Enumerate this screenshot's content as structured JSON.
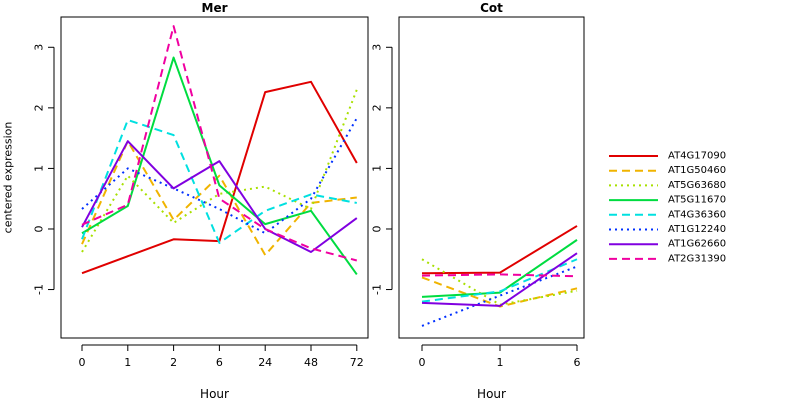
{
  "chart_data": [
    {
      "type": "line",
      "title": "Mer",
      "xlabel": "Hour",
      "ylabel": "centered expression",
      "categories": [
        "0",
        "1",
        "2",
        "6",
        "24",
        "48",
        "72"
      ],
      "ylim": [
        -1.8,
        3.5
      ],
      "yticks": [
        -1,
        0,
        1,
        2,
        3
      ],
      "grid": false,
      "series": [
        {
          "name": "AT4G17090",
          "color": "#e00000",
          "dash": "solid",
          "values": [
            -0.73,
            -0.45,
            -0.17,
            -0.2,
            2.26,
            2.43,
            1.09
          ]
        },
        {
          "name": "AT1G50460",
          "color": "#f0b400",
          "dash": "dashed",
          "values": [
            -0.25,
            1.45,
            0.15,
            0.88,
            -0.43,
            0.43,
            0.52
          ]
        },
        {
          "name": "AT5G63680",
          "color": "#a8e000",
          "dash": "dotted",
          "values": [
            -0.38,
            0.88,
            0.1,
            0.58,
            0.7,
            0.33,
            2.3
          ]
        },
        {
          "name": "AT5G11670",
          "color": "#00dc40",
          "dash": "solid",
          "values": [
            -0.07,
            0.38,
            2.83,
            0.72,
            0.08,
            0.3,
            -0.75
          ]
        },
        {
          "name": "AT4G36360",
          "color": "#00e0e0",
          "dash": "dashed",
          "values": [
            -0.17,
            1.8,
            1.55,
            -0.23,
            0.3,
            0.57,
            0.43
          ]
        },
        {
          "name": "AT1G12240",
          "color": "#0030ff",
          "dash": "dotted",
          "values": [
            0.33,
            1.0,
            0.67,
            0.33,
            -0.07,
            0.5,
            1.83
          ]
        },
        {
          "name": "AT1G62660",
          "color": "#8000e0",
          "dash": "solid",
          "values": [
            0.03,
            1.45,
            0.67,
            1.12,
            0.0,
            -0.38,
            0.18
          ]
        },
        {
          "name": "AT2G31390",
          "color": "#f000a0",
          "dash": "dashed",
          "values": [
            0.07,
            0.4,
            3.35,
            0.5,
            0.0,
            -0.32,
            -0.52
          ]
        }
      ]
    },
    {
      "type": "line",
      "title": "Cot",
      "xlabel": "Hour",
      "ylabel": "",
      "categories": [
        "0",
        "1",
        "6"
      ],
      "ylim": [
        -1.8,
        3.5
      ],
      "yticks": [
        -1,
        0,
        1,
        2,
        3
      ],
      "grid": false,
      "series": [
        {
          "name": "AT4G17090",
          "color": "#e00000",
          "dash": "solid",
          "values": [
            -0.73,
            -0.72,
            0.05
          ]
        },
        {
          "name": "AT1G50460",
          "color": "#f0b400",
          "dash": "dashed",
          "values": [
            -0.8,
            -1.28,
            -0.98
          ]
        },
        {
          "name": "AT5G63680",
          "color": "#a8e000",
          "dash": "dotted",
          "values": [
            -0.5,
            -1.25,
            -1.02
          ]
        },
        {
          "name": "AT5G11670",
          "color": "#00dc40",
          "dash": "solid",
          "values": [
            -1.12,
            -1.05,
            -0.18
          ]
        },
        {
          "name": "AT4G36360",
          "color": "#00e0e0",
          "dash": "dashed",
          "values": [
            -1.2,
            -1.03,
            -0.5
          ]
        },
        {
          "name": "AT1G12240",
          "color": "#0030ff",
          "dash": "dotted",
          "values": [
            -1.6,
            -1.1,
            -0.62
          ]
        },
        {
          "name": "AT1G62660",
          "color": "#8000e0",
          "dash": "solid",
          "values": [
            -1.22,
            -1.27,
            -0.4
          ]
        },
        {
          "name": "AT2G31390",
          "color": "#f000a0",
          "dash": "dashed",
          "values": [
            -0.77,
            -0.75,
            -0.78
          ]
        }
      ]
    }
  ],
  "legend": {
    "placement": "right",
    "entries": [
      "AT4G17090",
      "AT1G50460",
      "AT5G63680",
      "AT5G11670",
      "AT4G36360",
      "AT1G12240",
      "AT1G62660",
      "AT2G31390"
    ]
  }
}
